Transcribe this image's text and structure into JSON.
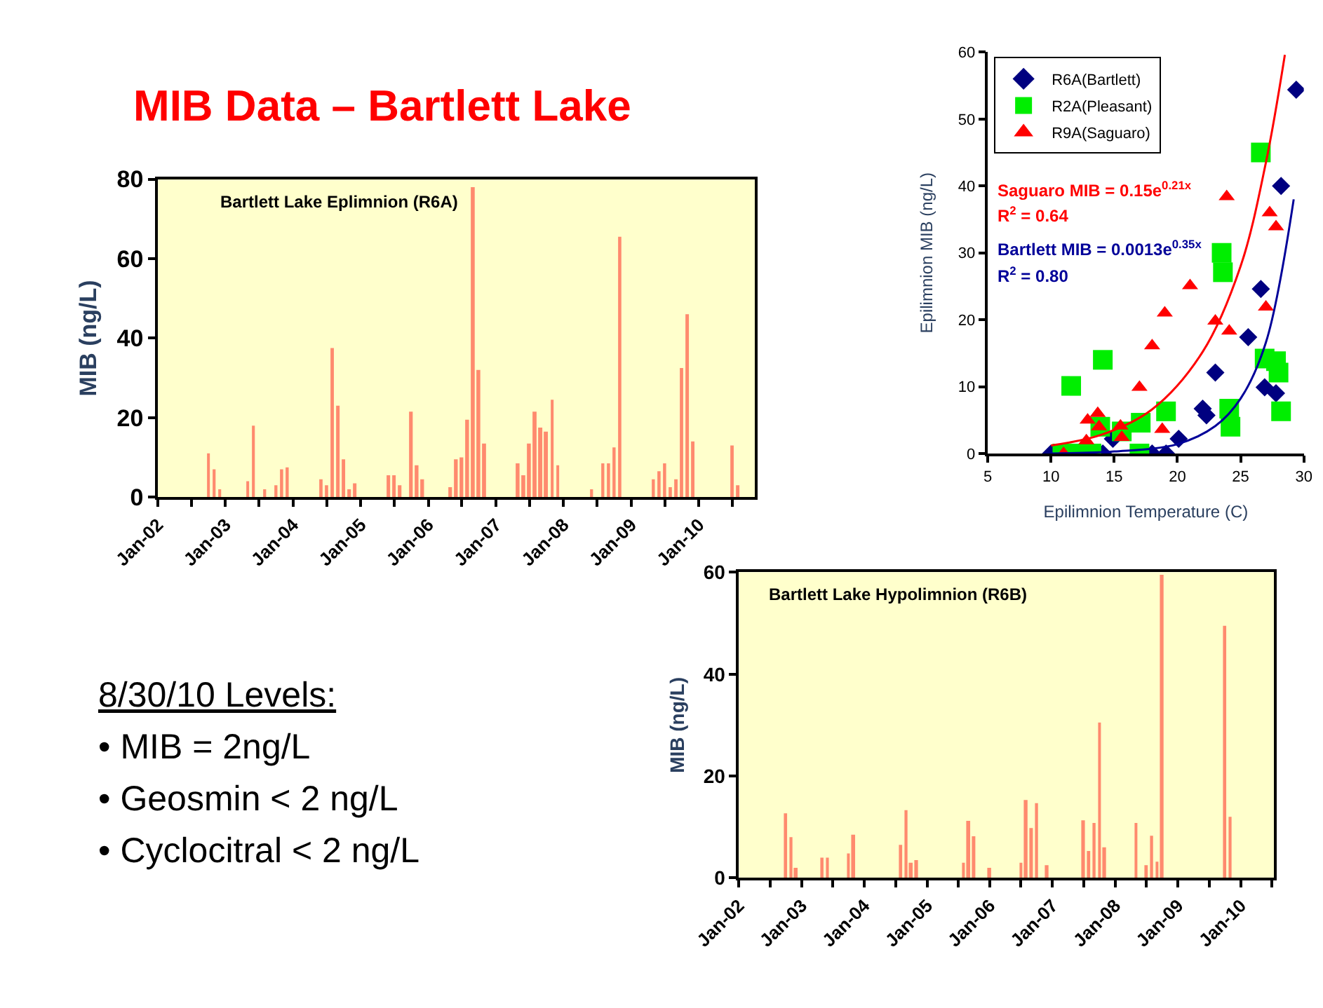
{
  "chart_data": [
    {
      "type": "other",
      "title": "MIB Data – Bartlett Lake",
      "annotations": [
        "8/30/10 Levels:",
        "• MIB = 2ng/L",
        "• Geosmin < 2 ng/L",
        "• Cyclocitral < 2 ng/L"
      ]
    },
    {
      "type": "bar",
      "title": "Bartlett Lake Eplimnion (R6A)",
      "ylabel": "MIB (ng/L)",
      "x": [
        "2002-10",
        "2002-11",
        "2002-12",
        "2003-05",
        "2003-06",
        "2003-08",
        "2003-10",
        "2003-11",
        "2003-12",
        "2004-06",
        "2004-07",
        "2004-08",
        "2004-09",
        "2004-10",
        "2004-11",
        "2004-12",
        "2005-06",
        "2005-07",
        "2005-08",
        "2005-10",
        "2005-11",
        "2005-12",
        "2006-05",
        "2006-06",
        "2006-07",
        "2006-08",
        "2006-09",
        "2006-10",
        "2006-11",
        "2007-05",
        "2007-06",
        "2007-07",
        "2007-08",
        "2007-09",
        "2007-10",
        "2007-11",
        "2007-12",
        "2008-06",
        "2008-08",
        "2008-09",
        "2008-10",
        "2008-11",
        "2009-05",
        "2009-06",
        "2009-07",
        "2009-08",
        "2009-09",
        "2009-10",
        "2009-11",
        "2009-12",
        "2010-07",
        "2010-08"
      ],
      "values": [
        11,
        7,
        2,
        4,
        18,
        2,
        3,
        7,
        7.5,
        4.5,
        3,
        37.5,
        23,
        9.5,
        2,
        3.5,
        5.5,
        5.5,
        3,
        21.5,
        8,
        4.5,
        2.5,
        9.5,
        10,
        19.5,
        78,
        32,
        13.5,
        8.5,
        5.5,
        13.5,
        21.5,
        17.5,
        16.5,
        24.5,
        8,
        2,
        8.5,
        8.5,
        12.5,
        65.5,
        4.5,
        6.5,
        8.5,
        2.5,
        4.5,
        32.5,
        46,
        14,
        13,
        3
      ],
      "color": "#ff8a6e",
      "ylim": [
        0,
        80
      ],
      "yticks": [
        0,
        20,
        40,
        60,
        80
      ],
      "xlim": [
        "2002-01",
        "2010-11"
      ],
      "xticks": [
        {
          "value": "2002-01",
          "label": "Jan-02"
        },
        {
          "value": "2002-07",
          "label": null
        },
        {
          "value": "2003-01",
          "label": "Jan-03"
        },
        {
          "value": "2003-07",
          "label": null
        },
        {
          "value": "2004-01",
          "label": "Jan-04"
        },
        {
          "value": "2004-07",
          "label": null
        },
        {
          "value": "2005-01",
          "label": "Jan-05"
        },
        {
          "value": "2005-07",
          "label": null
        },
        {
          "value": "2006-01",
          "label": "Jan-06"
        },
        {
          "value": "2006-07",
          "label": null
        },
        {
          "value": "2007-01",
          "label": "Jan-07"
        },
        {
          "value": "2007-07",
          "label": null
        },
        {
          "value": "2008-01",
          "label": "Jan-08"
        },
        {
          "value": "2008-07",
          "label": null
        },
        {
          "value": "2009-01",
          "label": "Jan-09"
        },
        {
          "value": "2009-07",
          "label": null
        },
        {
          "value": "2010-01",
          "label": "Jan-10"
        },
        {
          "value": "2010-07",
          "label": null
        }
      ]
    },
    {
      "type": "scatter",
      "xlabel": "Epilimnion Temperature (C)",
      "ylabel": "Epilimnion MIB (ng/L)",
      "legend": "top left",
      "xlim": [
        5,
        30
      ],
      "xticks": [
        5,
        10,
        15,
        20,
        25,
        30
      ],
      "ylim": [
        0,
        60
      ],
      "yticks": [
        0,
        10,
        20,
        30,
        40,
        50,
        60
      ],
      "annotations": [
        "Saguaro MIB = 0.15e$^{0.21x}$",
        "R$^{2}$ = 0.64",
        "Bartlett MIB = 0.0013e$^{0.35x}$",
        "R$^{2}$ = 0.80"
      ],
      "series": [
        {
          "name": "R6A(Bartlett)",
          "color": "#000080",
          "marker": "diamond",
          "x": [
            10,
            14.1,
            14.9,
            18,
            19.1,
            20.1,
            22,
            22.3,
            23,
            25.6,
            26.6,
            26.9,
            27.8,
            28.2,
            29.4
          ],
          "values": [
            0,
            0,
            2.2,
            0,
            0,
            2.2,
            6.7,
            5.7,
            12.1,
            17.4,
            24.6,
            9.9,
            9,
            40,
            54.4
          ]
        },
        {
          "name": "R2A(Pleasant)",
          "color": "#00ee00",
          "marker": "square",
          "x": [
            11.6,
            14.1,
            10.9,
            12.3,
            13.2,
            13.9,
            15.6,
            17.1,
            17,
            19.1,
            23.5,
            23.6,
            24.1,
            24.2,
            26.6,
            26.9,
            27.8,
            28,
            28.2
          ],
          "values": [
            10.1,
            14,
            0,
            0,
            0,
            4,
            3.3,
            4.6,
            0,
            6.3,
            30,
            27.1,
            6.7,
            4,
            45,
            14.2,
            13.8,
            12.1,
            6.3
          ]
        },
        {
          "name": "R9A(Saguaro)",
          "color": "#ff0000",
          "marker": "triangle",
          "x": [
            11,
            12.8,
            12.9,
            13.7,
            13.8,
            15.5,
            15.6,
            17,
            18,
            19,
            18.8,
            21,
            23,
            23.9,
            24.1,
            27,
            27.3,
            27.8
          ],
          "values": [
            0,
            1.9,
            5,
            6,
            4,
            4.1,
            2.4,
            9.9,
            16.1,
            21,
            3.6,
            25.1,
            19.8,
            38.4,
            18.3,
            21.9,
            36,
            33.9
          ]
        },
        {
          "type": "line",
          "color": "#ff0000",
          "marker": "none",
          "x": [
            10,
            14,
            18,
            22,
            25,
            27,
            28.5
          ],
          "values": [
            1.2,
            2.8,
            6.6,
            15.2,
            28,
            43.5,
            59.6
          ]
        },
        {
          "type": "line",
          "color": "#000099",
          "marker": "none",
          "x": [
            10,
            15,
            20,
            23,
            25,
            27,
            29.2
          ],
          "values": [
            0,
            0.3,
            1.4,
            4.1,
            8.2,
            16.6,
            38
          ]
        }
      ]
    },
    {
      "type": "bar",
      "title": "Bartlett Lake Hypolimnion (R6B)",
      "ylabel": "MIB (ng/L)",
      "x": [
        "2002-10",
        "2002-11",
        "2002-12",
        "2003-05",
        "2003-06",
        "2003-10",
        "2003-11",
        "2004-08",
        "2004-09",
        "2004-10",
        "2004-11",
        "2005-08",
        "2005-09",
        "2005-10",
        "2006-01",
        "2006-07",
        "2006-08",
        "2006-09",
        "2006-10",
        "2006-12",
        "2007-07",
        "2007-08",
        "2007-09",
        "2007-10",
        "2007-11",
        "2008-05",
        "2008-07",
        "2008-08",
        "2008-09",
        "2008-10",
        "2009-10",
        "2009-11"
      ],
      "values": [
        12.7,
        8,
        2,
        4,
        4,
        4.8,
        8.5,
        6.5,
        13.3,
        3,
        3.5,
        3,
        11.2,
        8.2,
        2,
        3,
        15.3,
        9.8,
        14.7,
        2.5,
        11.3,
        5.3,
        10.8,
        30.5,
        6,
        10.8,
        2.5,
        8.3,
        3.2,
        59.5,
        49.5,
        12
      ],
      "color": "#ff8a6e",
      "ylim": [
        0,
        60
      ],
      "yticks": [
        0,
        20,
        40,
        60
      ],
      "xlim": [
        "2002-01",
        "2010-07-15"
      ],
      "xticks": [
        {
          "value": "2002-01",
          "label": "Jan-02"
        },
        {
          "value": "2002-07",
          "label": null
        },
        {
          "value": "2003-01",
          "label": "Jan-03"
        },
        {
          "value": "2003-07",
          "label": null
        },
        {
          "value": "2004-01",
          "label": "Jan-04"
        },
        {
          "value": "2004-07",
          "label": null
        },
        {
          "value": "2005-01",
          "label": "Jan-05"
        },
        {
          "value": "2005-07",
          "label": null
        },
        {
          "value": "2006-01",
          "label": "Jan-06"
        },
        {
          "value": "2006-07",
          "label": null
        },
        {
          "value": "2007-01",
          "label": "Jan-07"
        },
        {
          "value": "2007-07",
          "label": null
        },
        {
          "value": "2008-01",
          "label": "Jan-08"
        },
        {
          "value": "2008-07",
          "label": null
        },
        {
          "value": "2009-01",
          "label": "Jan-09"
        },
        {
          "value": "2009-07",
          "label": null
        },
        {
          "value": "2010-01",
          "label": "Jan-10"
        },
        {
          "value": "2010-07",
          "label": null
        }
      ]
    }
  ]
}
